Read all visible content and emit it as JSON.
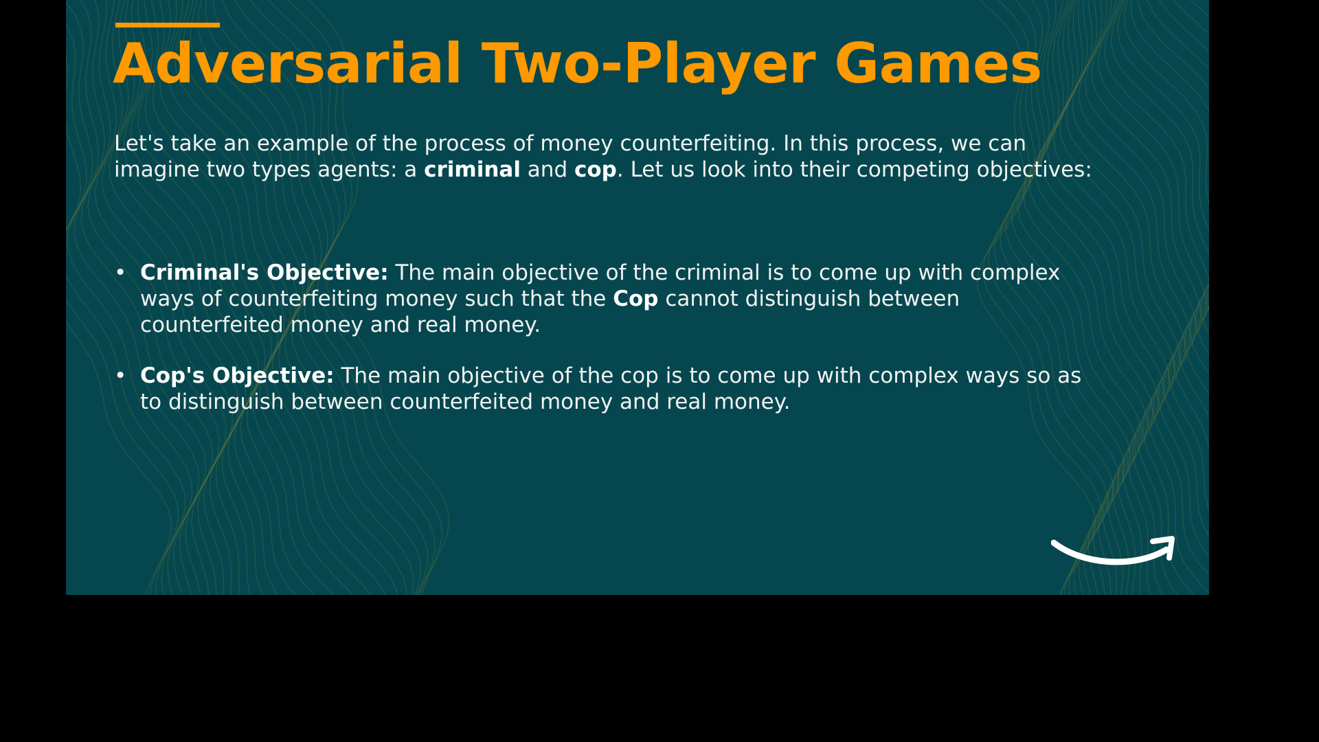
{
  "slide": {
    "title": "Adversarial Two-Player Games",
    "intro": {
      "part1": "Let's take an example of the process of money counterfeiting. In this process, we can imagine two types agents: a ",
      "bold1": "criminal",
      "part2": " and ",
      "bold2": "cop",
      "part3": ". Let us look into their competing objectives:"
    },
    "bullets": [
      {
        "marker": "•",
        "heading": "Criminal's Objective:",
        "text1": " The main objective of the criminal is to come up with complex ways of counterfeiting money such that the ",
        "bold": "Cop",
        "text2": " cannot distinguish between counterfeited money and real money."
      },
      {
        "marker": "•",
        "heading": "Cop's Objective:",
        "text1": " The main objective of the cop is to come up with complex ways so as to distinguish between counterfeited money and real money."
      }
    ]
  },
  "colors": {
    "background": "#06474f",
    "accent": "#ff9900",
    "text": "#f2f2f2"
  },
  "icons": {
    "logo": "amazon-smile-arrow-icon",
    "bullet": "bullet-dot"
  }
}
